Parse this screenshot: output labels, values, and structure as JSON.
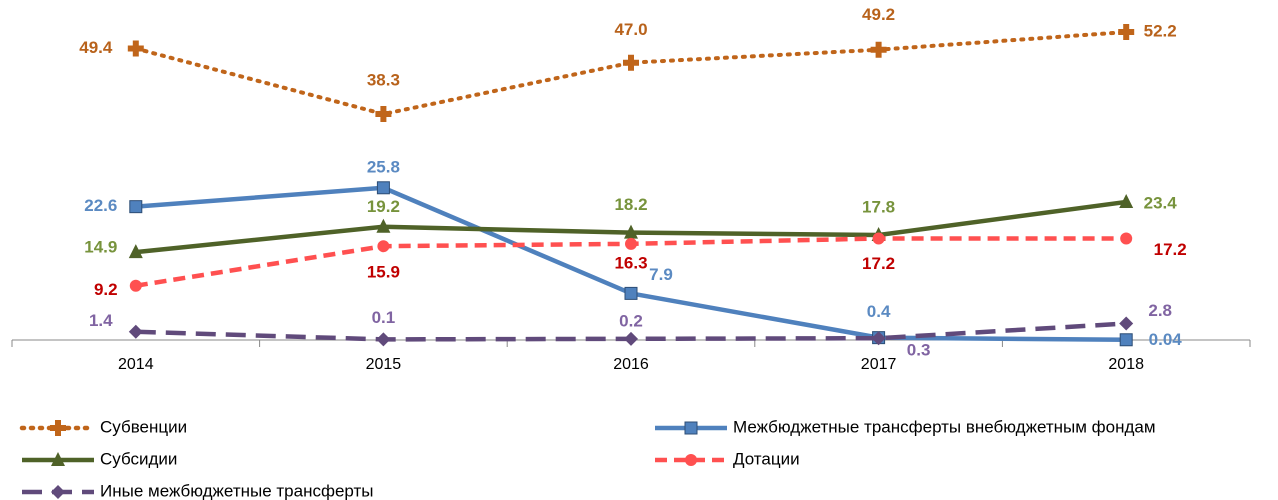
{
  "chart_data": {
    "type": "line",
    "categories": [
      "2014",
      "2015",
      "2016",
      "2017",
      "2018"
    ],
    "ylim": [
      0,
      55
    ],
    "series": [
      {
        "name": "Субвенции",
        "color": "#c0651a",
        "label_color": "#b8621b",
        "dash": "dotted",
        "marker": "plus",
        "values": [
          49.4,
          38.3,
          47.0,
          49.2,
          52.2
        ],
        "value_labels": [
          "49.4",
          "38.3",
          "47.0",
          "49.2",
          "52.2"
        ]
      },
      {
        "name": "Межбюджетные трансферты внебюджетным фондам",
        "color": "#4f81bd",
        "label_color": "#5b8ac2",
        "dash": "solid",
        "marker": "square",
        "values": [
          22.6,
          25.8,
          7.9,
          0.4,
          0.04
        ]
      },
      {
        "name": "Субсидии",
        "color": "#4f6228",
        "label_color": "#77933c",
        "dash": "solid",
        "marker": "triangle",
        "values": [
          14.9,
          19.2,
          18.2,
          17.8,
          23.4
        ]
      },
      {
        "name": "Дотации",
        "color": "#ff5050",
        "label_color": "#c00000",
        "dash": "dashed",
        "marker": "circle",
        "values": [
          9.2,
          15.9,
          16.3,
          17.2,
          17.2
        ]
      },
      {
        "name": "Иные межбюджетные трансферты",
        "color": "#604a7b",
        "label_color": "#8064a2",
        "dash": "longdash",
        "marker": "diamond",
        "values": [
          1.4,
          0.1,
          0.2,
          0.3,
          2.8
        ]
      }
    ]
  }
}
